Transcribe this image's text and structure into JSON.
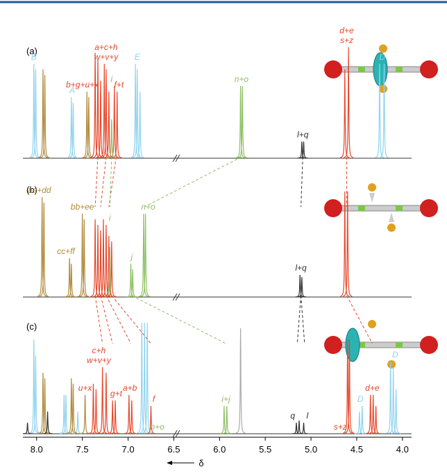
{
  "chart_data": {
    "type": "nmr-stack",
    "x_label": "δ",
    "xlim": [
      8.15,
      3.9
    ],
    "xticks": [
      {
        "value": 8,
        "label": "8.0"
      },
      {
        "value": 7.5,
        "label": "7.5"
      },
      {
        "value": 7,
        "label": "7.0"
      },
      {
        "value": 6.5,
        "label": "6.5"
      },
      {
        "value": 6,
        "label": "6.0"
      },
      {
        "value": 5.5,
        "label": "5.5"
      },
      {
        "value": 5,
        "label": "5.0"
      },
      {
        "value": 4.5,
        "label": "4.5"
      },
      {
        "value": 4,
        "label": "4.0"
      }
    ],
    "spectra": [
      {
        "label": "(a)",
        "groups": [
          {
            "color": "#8fd3ee",
            "x": [
              8.03,
              8.01,
              7.62,
              7.6,
              6.92,
              6.9,
              6.87,
              4.25,
              4.2
            ],
            "values": [
              0.85,
              0.8,
              0.55,
              0.5,
              0.85,
              0.8,
              0.6,
              0.85,
              0.85
            ]
          },
          {
            "color": "#b08a3a",
            "x": [
              7.93,
              7.91,
              7.45,
              7.43
            ],
            "values": [
              0.8,
              0.75,
              0.6,
              0.55
            ]
          },
          {
            "color": "#e8472b",
            "x": [
              7.36,
              7.33,
              7.3,
              7.26,
              7.24,
              7.21,
              7.15,
              7.12,
              4.63,
              4.59
            ],
            "values": [
              0.95,
              0.9,
              0.7,
              0.85,
              0.8,
              0.6,
              0.65,
              0.6,
              0.8,
              1.0
            ]
          },
          {
            "color": "#8cc063",
            "x": [
              7.18,
              5.77,
              5.75
            ],
            "values": [
              0.35,
              0.65,
              0.65
            ]
          },
          {
            "color": "#333333",
            "x": [
              5.1,
              5.08
            ],
            "values": [
              0.15,
              0.15
            ]
          }
        ],
        "annotations": [
          {
            "lines": [
              "B"
            ],
            "x": 8.03,
            "color": "#8fd3ee"
          },
          {
            "lines": [
              "A"
            ],
            "x": 7.61,
            "color": "#8fd3ee"
          },
          {
            "lines": [
              "E"
            ],
            "x": 6.9,
            "color": "#8fd3ee"
          },
          {
            "lines": [
              "D"
            ],
            "x": 4.22,
            "color": "#8fd3ee"
          },
          {
            "lines": [
              "b+g+u+x"
            ],
            "x": 7.5,
            "color": "#e8472b"
          },
          {
            "lines": [
              "w+v+y",
              "a+c+h"
            ],
            "x": 7.24,
            "color": "#e8472b"
          },
          {
            "lines": [
              "f+t"
            ],
            "x": 7.1,
            "color": "#e8472b"
          },
          {
            "lines": [
              "i"
            ],
            "x": 7.18,
            "color": "#8cc063"
          },
          {
            "lines": [
              "n+o"
            ],
            "x": 5.76,
            "color": "#8cc063"
          },
          {
            "lines": [
              "l+q"
            ],
            "x": 5.09,
            "color": "#333333"
          },
          {
            "lines": [
              "s+z",
              "d+e"
            ],
            "x": 4.61,
            "color": "#e8472b"
          }
        ]
      },
      {
        "label": "(b)",
        "groups": [
          {
            "color": "#b08a3a",
            "x": [
              7.94,
              7.92,
              7.64,
              7.62,
              7.5,
              7.48
            ],
            "values": [
              0.9,
              0.85,
              0.35,
              0.3,
              0.75,
              0.7
            ]
          },
          {
            "color": "#e8472b",
            "x": [
              7.36,
              7.33,
              7.3,
              7.27,
              7.24,
              7.21,
              7.18,
              4.63,
              4.6
            ],
            "values": [
              0.7,
              0.65,
              0.6,
              0.7,
              0.65,
              0.55,
              0.5,
              0.95,
              0.95
            ]
          },
          {
            "color": "#8cc063",
            "x": [
              7.2,
              6.97,
              6.95,
              6.83,
              6.81
            ],
            "values": [
              0.45,
              0.3,
              0.25,
              0.75,
              0.75
            ]
          },
          {
            "color": "#333333",
            "x": [
              5.12,
              5.1
            ],
            "values": [
              0.2,
              0.18
            ]
          }
        ],
        "annotations": [
          {
            "lines": [
              "aa+dd"
            ],
            "x": 7.97,
            "color": "#b08a3a"
          },
          {
            "lines": [
              "cc+ff"
            ],
            "x": 7.68,
            "color": "#b08a3a"
          },
          {
            "lines": [
              "bb+ee"
            ],
            "x": 7.5,
            "color": "#b08a3a"
          },
          {
            "lines": [
              "i"
            ],
            "x": 7.2,
            "color": "#8cc063"
          },
          {
            "lines": [
              "j"
            ],
            "x": 6.96,
            "color": "#8cc063"
          },
          {
            "lines": [
              "n+o"
            ],
            "x": 6.78,
            "color": "#8cc063"
          },
          {
            "lines": [
              "l+q"
            ],
            "x": 5.11,
            "color": "#333333"
          }
        ]
      },
      {
        "label": "(c)",
        "groups": [
          {
            "color": "#8fd3ee",
            "x": [
              8.03,
              8.01,
              7.7,
              7.68,
              7.55,
              6.85,
              6.82,
              6.79,
              4.47,
              4.44,
              4.13,
              4.1,
              4.07
            ],
            "values": [
              0.85,
              0.7,
              0.35,
              0.35,
              0.2,
              1.0,
              1.0,
              1.0,
              0.2,
              0.25,
              0.65,
              0.6,
              0.4
            ]
          },
          {
            "color": "#b08a3a",
            "x": [
              7.93,
              7.91,
              7.62,
              7.6,
              7.47
            ],
            "values": [
              0.55,
              0.5,
              0.5,
              0.45,
              0.35
            ]
          },
          {
            "color": "#e8472b",
            "x": [
              7.38,
              7.35,
              7.28,
              7.24,
              7.17,
              7.14,
              6.99,
              6.96,
              6.75,
              4.6,
              4.58,
              4.35,
              4.32,
              4.29
            ],
            "values": [
              0.45,
              0.4,
              0.6,
              0.55,
              0.3,
              0.3,
              0.35,
              0.3,
              0.25,
              0.85,
              0.85,
              0.35,
              0.35,
              0.25
            ]
          },
          {
            "color": "#8cc063",
            "x": [
              5.95,
              5.92
            ],
            "values": [
              0.25,
              0.25
            ]
          },
          {
            "color": "#aaaaaa",
            "x": [
              5.77
            ],
            "values": [
              0.95
            ]
          },
          {
            "color": "#333333",
            "x": [
              8.1,
              7.88,
              5.16,
              5.13,
              5.08
            ],
            "values": [
              0.1,
              0.2,
              0.1,
              0.12,
              0.1
            ]
          }
        ],
        "annotations": [
          {
            "lines": [
              "w+v+y",
              "c+h"
            ],
            "x": 7.32,
            "color": "#e8472b"
          },
          {
            "lines": [
              "u+x"
            ],
            "x": 7.47,
            "color": "#e8472b"
          },
          {
            "lines": [
              "g+t"
            ],
            "x": 7.13,
            "color": "#e8472b"
          },
          {
            "lines": [
              "a+b"
            ],
            "x": 6.98,
            "color": "#e8472b"
          },
          {
            "lines": [
              "f"
            ],
            "x": 6.72,
            "color": "#e8472b"
          },
          {
            "lines": [
              "n+o"
            ],
            "x": 6.68,
            "color": "#8cc063"
          },
          {
            "lines": [
              "i+j"
            ],
            "x": 5.93,
            "color": "#8cc063"
          },
          {
            "lines": [
              "q"
            ],
            "x": 5.2,
            "color": "#333333"
          },
          {
            "lines": [
              "l"
            ],
            "x": 5.04,
            "color": "#333333"
          },
          {
            "lines": [
              "s+z"
            ],
            "x": 4.68,
            "color": "#e8472b"
          },
          {
            "lines": [
              "d+e"
            ],
            "x": 4.33,
            "color": "#e8472b"
          },
          {
            "lines": [
              "D"
            ],
            "x": 4.46,
            "color": "#8fd3ee"
          },
          {
            "lines": [
              "D"
            ],
            "x": 4.08,
            "color": "#8fd3ee"
          }
        ]
      }
    ],
    "links": [
      {
        "color": "#e8472b",
        "from": 7.33,
        "to": 7.36,
        "panel": 0
      },
      {
        "color": "#e8472b",
        "from": 7.24,
        "to": 7.3,
        "panel": 0
      },
      {
        "color": "#e8472b",
        "from": 7.13,
        "to": 7.21,
        "panel": 0
      },
      {
        "color": "#8cc063",
        "from": 7.18,
        "to": 7.2,
        "panel": 0
      },
      {
        "color": "#8cc063",
        "from": 5.76,
        "to": 6.82,
        "panel": 0
      },
      {
        "color": "#333333",
        "from": 5.09,
        "to": 5.11,
        "panel": 0
      },
      {
        "color": "#e8472b",
        "from": 4.61,
        "to": 4.61,
        "panel": 0
      },
      {
        "color": "#e8472b",
        "from": 7.36,
        "to": 7.28,
        "panel": 1
      },
      {
        "color": "#e8472b",
        "from": 7.3,
        "to": 7.17,
        "panel": 1
      },
      {
        "color": "#e8472b",
        "from": 7.24,
        "to": 6.97,
        "panel": 1
      },
      {
        "color": "#e8472b",
        "from": 7.18,
        "to": 6.75,
        "panel": 1
      },
      {
        "color": "#8cc063",
        "from": 6.96,
        "to": 5.93,
        "panel": 1
      },
      {
        "color": "#333333",
        "from": 5.11,
        "to": 5.15,
        "panel": 1
      },
      {
        "color": "#333333",
        "from": 5.11,
        "to": 5.07,
        "panel": 1
      },
      {
        "color": "#e8472b",
        "from": 4.61,
        "to": 4.33,
        "panel": 1
      }
    ]
  }
}
